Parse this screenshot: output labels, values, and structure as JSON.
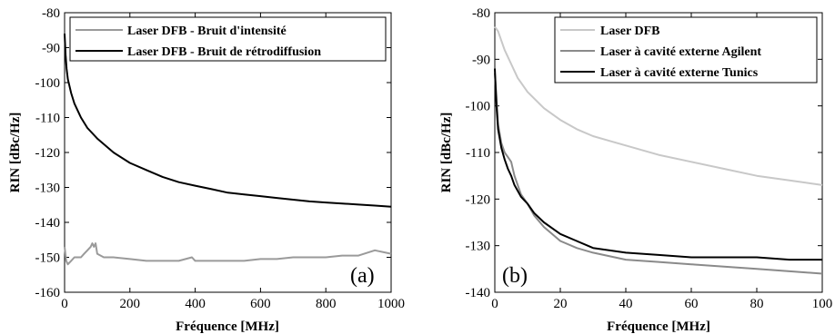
{
  "chart_data": [
    {
      "type": "line",
      "panel_label": "(a)",
      "xlabel": "Fréquence [MHz]",
      "ylabel": "RIN [dBc/Hz]",
      "xlim": [
        0,
        1000
      ],
      "ylim": [
        -160,
        -80
      ],
      "xticks": [
        0,
        200,
        400,
        600,
        800,
        1000
      ],
      "yticks": [
        -160,
        -150,
        -140,
        -130,
        -120,
        -110,
        -100,
        -90,
        -80
      ],
      "grid": false,
      "legend_position": "top-right",
      "series": [
        {
          "name": "Laser DFB - Bruit d'intensité",
          "color": "#9a9a9a",
          "x": [
            0,
            5,
            10,
            20,
            30,
            50,
            60,
            70,
            80,
            85,
            90,
            95,
            100,
            120,
            150,
            200,
            250,
            300,
            350,
            390,
            400,
            450,
            500,
            550,
            600,
            650,
            700,
            750,
            800,
            850,
            900,
            950,
            1000
          ],
          "y": [
            -147,
            -151,
            -152,
            -151,
            -150,
            -150,
            -149,
            -148,
            -147,
            -146,
            -147,
            -146,
            -149,
            -150,
            -150,
            -150.5,
            -151,
            -151,
            -151,
            -150,
            -151,
            -151,
            -151,
            -151,
            -150.5,
            -150.5,
            -150,
            -150,
            -150,
            -149.5,
            -149.5,
            -148,
            -149
          ]
        },
        {
          "name": "Laser DFB - Bruit de rétrodiffusion",
          "color": "#000000",
          "x": [
            0,
            3,
            6,
            10,
            20,
            30,
            50,
            70,
            100,
            150,
            200,
            250,
            300,
            350,
            400,
            450,
            500,
            550,
            600,
            650,
            700,
            750,
            800,
            850,
            900,
            950,
            1000
          ],
          "y": [
            -86,
            -92,
            -96,
            -99,
            -103,
            -106,
            -110,
            -113,
            -116,
            -120,
            -123,
            -125,
            -127,
            -128.5,
            -129.5,
            -130.5,
            -131.5,
            -132,
            -132.5,
            -133,
            -133.5,
            -134,
            -134.3,
            -134.6,
            -134.9,
            -135.2,
            -135.5
          ]
        }
      ]
    },
    {
      "type": "line",
      "panel_label": "(b)",
      "xlabel": "Fréquence [MHz]",
      "ylabel": "RIN [dBc/Hz]",
      "xlim": [
        0,
        100
      ],
      "ylim": [
        -140,
        -80
      ],
      "xticks": [
        0,
        20,
        40,
        60,
        80,
        100
      ],
      "yticks": [
        -140,
        -130,
        -120,
        -110,
        -100,
        -90,
        -80
      ],
      "grid": false,
      "legend_position": "top-right",
      "series": [
        {
          "name": "Laser DFB",
          "color": "#c8c8c8",
          "x": [
            0,
            1,
            2,
            3,
            5,
            7,
            10,
            15,
            20,
            25,
            30,
            35,
            40,
            45,
            50,
            60,
            70,
            80,
            90,
            100
          ],
          "y": [
            -83,
            -84,
            -86,
            -88,
            -91,
            -94,
            -97,
            -100.5,
            -103,
            -105,
            -106.5,
            -107.5,
            -108.5,
            -109.5,
            -110.5,
            -112,
            -113.5,
            -115,
            -116,
            -117
          ]
        },
        {
          "name": "Laser à cavité externe Agilent",
          "color": "#8a8a8a",
          "x": [
            0,
            0.5,
            1,
            2,
            3,
            4,
            5,
            6,
            7,
            8,
            9,
            10,
            12,
            15,
            20,
            25,
            30,
            40,
            50,
            60,
            70,
            80,
            90,
            100
          ],
          "y": [
            -93,
            -98,
            -104,
            -108,
            -110,
            -111,
            -112,
            -115,
            -117,
            -119,
            -120,
            -121,
            -123.5,
            -126,
            -129,
            -130.5,
            -131.5,
            -133,
            -133.5,
            -134,
            -134.5,
            -135,
            -135.5,
            -136
          ]
        },
        {
          "name": "Laser à cavité externe Tunics",
          "color": "#000000",
          "x": [
            0,
            0.5,
            1,
            2,
            3,
            4,
            5,
            6,
            8,
            10,
            12,
            15,
            20,
            25,
            30,
            40,
            50,
            60,
            70,
            80,
            90,
            100
          ],
          "y": [
            -92,
            -100,
            -105,
            -109,
            -111.5,
            -113.5,
            -115,
            -117,
            -119.5,
            -121,
            -123,
            -125,
            -127.5,
            -129,
            -130.5,
            -131.5,
            -132,
            -132.5,
            -132.5,
            -132.5,
            -133,
            -133
          ]
        }
      ]
    }
  ]
}
